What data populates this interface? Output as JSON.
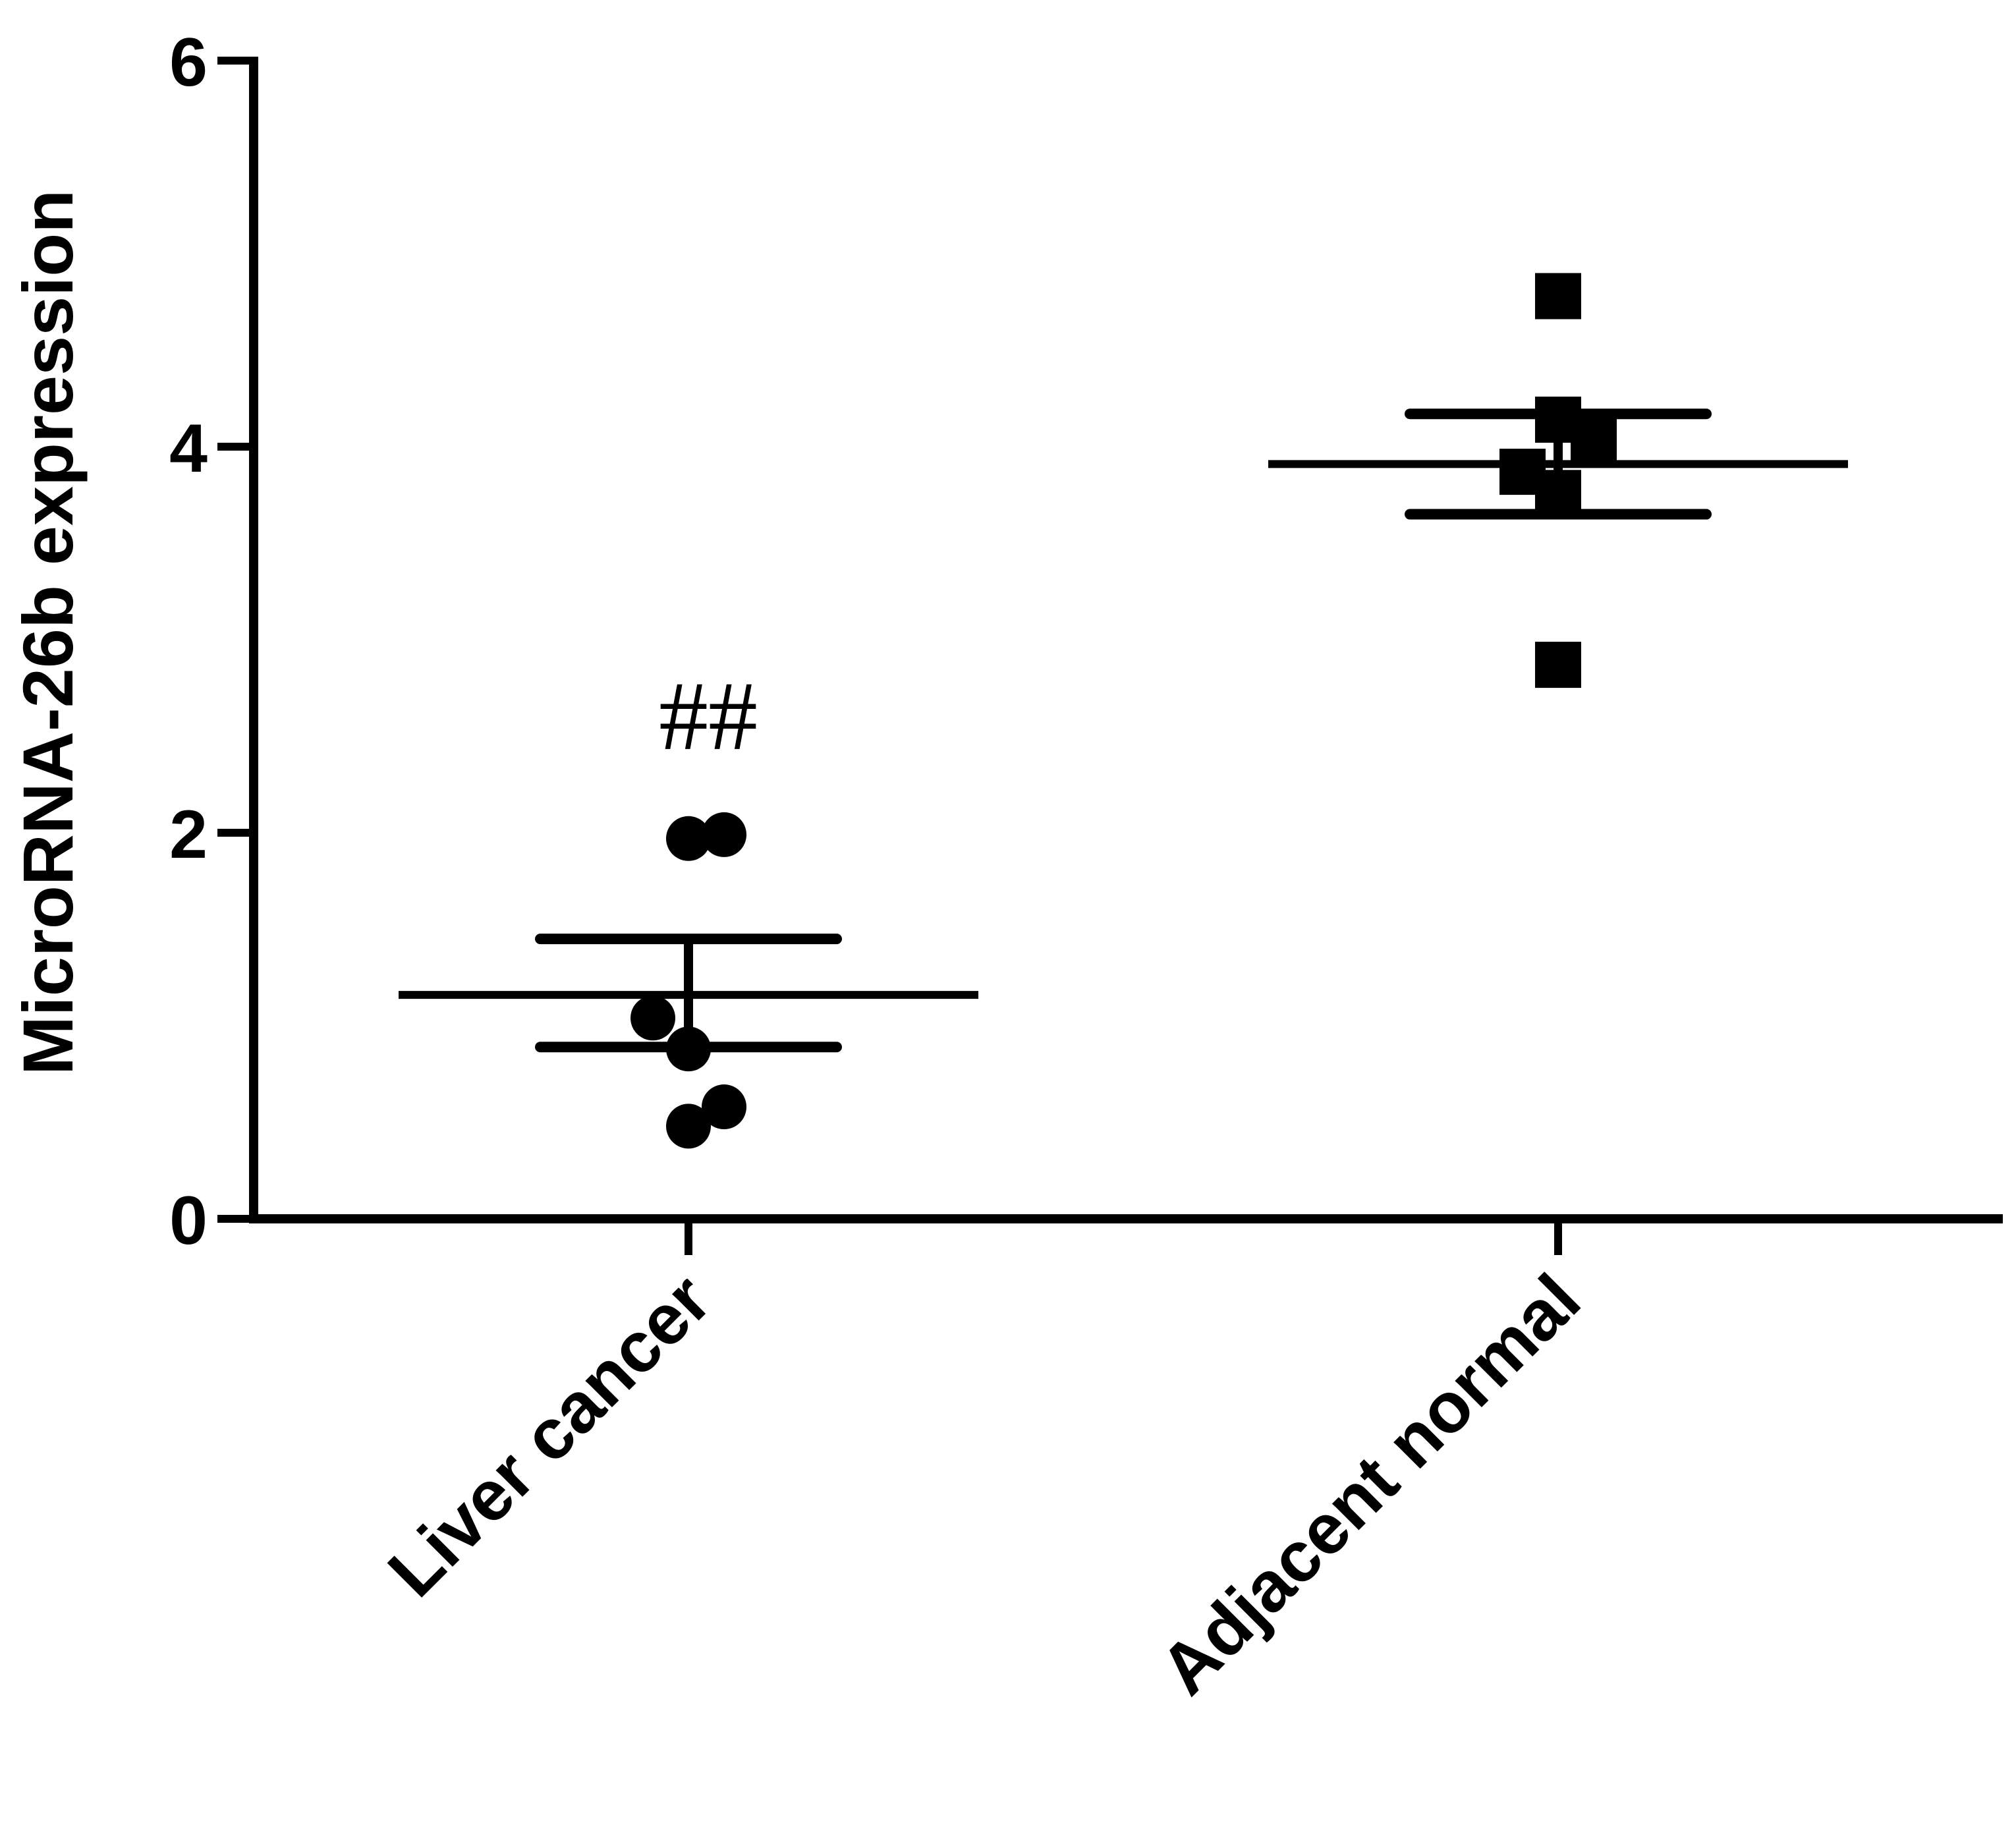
{
  "chart_data": {
    "type": "scatter",
    "title": "",
    "xlabel": "",
    "ylabel": "MicroRNA-26b expression",
    "ylim": [
      0,
      6
    ],
    "yticks": [
      "0",
      "2",
      "4",
      "6"
    ],
    "grid": false,
    "legend": "none",
    "categories": [
      "Liver cancer",
      "Adjacent normal"
    ],
    "series": [
      {
        "category": "Liver cancer",
        "marker": "circle",
        "points": [
          {
            "x": -0.08,
            "y": 1.04
          },
          {
            "x": 0.0,
            "y": 0.88
          },
          {
            "x": 0.0,
            "y": 0.48
          },
          {
            "x": 0.0,
            "y": 1.97
          },
          {
            "x": 0.08,
            "y": 0.58
          },
          {
            "x": 0.08,
            "y": 1.99
          }
        ],
        "mean": 1.16,
        "sem_upper": 1.45,
        "sem_lower": 0.89,
        "annotation": "##"
      },
      {
        "category": "Adjacent normal",
        "marker": "square",
        "points": [
          {
            "x": -0.08,
            "y": 3.87
          },
          {
            "x": 0.0,
            "y": 3.76
          },
          {
            "x": 0.0,
            "y": 4.14
          },
          {
            "x": 0.0,
            "y": 4.78
          },
          {
            "x": 0.0,
            "y": 2.87
          },
          {
            "x": 0.08,
            "y": 4.03
          }
        ],
        "mean": 3.91,
        "sem_upper": 4.17,
        "sem_lower": 3.65,
        "annotation": ""
      }
    ],
    "colors": {
      "marks": "#000000",
      "background": "#ffffff"
    }
  }
}
